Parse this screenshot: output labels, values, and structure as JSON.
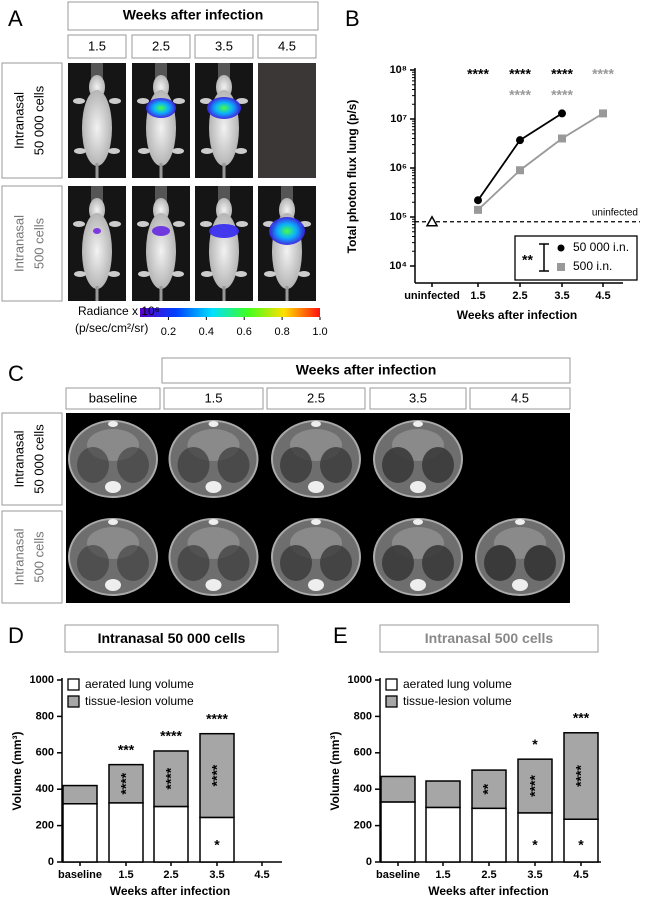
{
  "panel_a": {
    "letter": "A",
    "header": "Weeks after infection",
    "columns": [
      "1.5",
      "2.5",
      "3.5",
      "4.5"
    ],
    "row_labels": [
      [
        "Intranasal",
        "50 000 cells"
      ],
      [
        "Intranasal",
        "500 cells"
      ]
    ],
    "colorbar": {
      "label": "Radiance x 10⁶",
      "unit": "(p/sec/cm²/sr)",
      "lim": [
        0.05,
        1.0
      ],
      "ticks": [
        0.2,
        0.4,
        0.6,
        0.8,
        {
          "value": 1.0,
          "label": "1.0"
        }
      ]
    }
  },
  "chart_data": [
    {
      "letter": "B",
      "type": "line",
      "yscale": "log",
      "ylabel": "Total photon flux lung (p/s)",
      "xlabel": "Weeks after infection",
      "categories": [
        "uninfected",
        "1.5",
        "2.5",
        "3.5",
        "4.5"
      ],
      "ylim": [
        4500,
        100000000
      ],
      "yticks": [
        {
          "value": 10000,
          "label": "10⁴"
        },
        {
          "value": 100000,
          "label": "10⁵"
        },
        {
          "value": 1000000,
          "label": "10⁶"
        },
        {
          "value": 10000000,
          "label": "10⁷"
        },
        {
          "value": 100000000,
          "label": "10⁸"
        }
      ],
      "reference_line": {
        "label": "uninfected",
        "value": 80000
      },
      "legend": "lower right",
      "legend_note": "**",
      "series": [
        {
          "name": "50 000 i.n.",
          "color": "#000000",
          "values": [
            null,
            220000,
            3700000,
            13000000,
            null
          ],
          "significance": [
            null,
            "****",
            "****",
            "****",
            null
          ]
        },
        {
          "name": "500 i.n.",
          "color": "#999999",
          "values": [
            null,
            140000,
            900000,
            4000000,
            13000000
          ],
          "significance": [
            null,
            null,
            "****",
            "****",
            "****"
          ]
        }
      ]
    },
    {
      "letter": "D",
      "type": "bar",
      "stacked": true,
      "title": "Intranasal 50 000 cells",
      "title_color": "#000000",
      "ylabel": "Volume (mm³)",
      "xlabel": "Weeks after infection",
      "categories": [
        "baseline",
        "1.5",
        "2.5",
        "3.5",
        "4.5"
      ],
      "ylim": [
        0,
        1000
      ],
      "yticks": [
        0,
        200,
        400,
        600,
        800,
        1000
      ],
      "legend": "upper left",
      "series": [
        {
          "name": "aerated lung volume",
          "color": "#ffffff",
          "values": [
            320,
            325,
            305,
            245,
            null
          ],
          "significance": [
            null,
            null,
            null,
            "*",
            null
          ]
        },
        {
          "name": "tissue-lesion volume",
          "color": "#a6a6a6",
          "values": [
            100,
            210,
            305,
            460,
            null
          ],
          "significance": [
            null,
            "****",
            "****",
            "****",
            null
          ]
        }
      ],
      "total_significance": [
        null,
        "***",
        "****",
        "****",
        null
      ]
    },
    {
      "letter": "E",
      "type": "bar",
      "stacked": true,
      "title": "Intranasal 500 cells",
      "title_color": "#888888",
      "ylabel": "Volume (mm³)",
      "xlabel": "Weeks after infection",
      "categories": [
        "baseline",
        "1.5",
        "2.5",
        "3.5",
        "4.5"
      ],
      "ylim": [
        0,
        1000
      ],
      "yticks": [
        0,
        200,
        400,
        600,
        800,
        1000
      ],
      "legend": "upper left",
      "series": [
        {
          "name": "aerated lung volume",
          "color": "#ffffff",
          "values": [
            330,
            300,
            295,
            270,
            235
          ],
          "significance": [
            null,
            null,
            null,
            "*",
            "*"
          ]
        },
        {
          "name": "tissue-lesion volume",
          "color": "#a6a6a6",
          "values": [
            140,
            145,
            210,
            295,
            475
          ],
          "significance": [
            null,
            null,
            "**",
            "****",
            "****"
          ]
        }
      ],
      "total_significance": [
        null,
        null,
        null,
        "*",
        "***"
      ]
    }
  ],
  "panel_c": {
    "letter": "C",
    "header": "Weeks after infection",
    "columns": [
      "baseline",
      "1.5",
      "2.5",
      "3.5",
      "4.5"
    ],
    "row_labels": [
      [
        "Intranasal",
        "50 000 cells"
      ],
      [
        "Intranasal",
        "500 cells"
      ]
    ]
  }
}
